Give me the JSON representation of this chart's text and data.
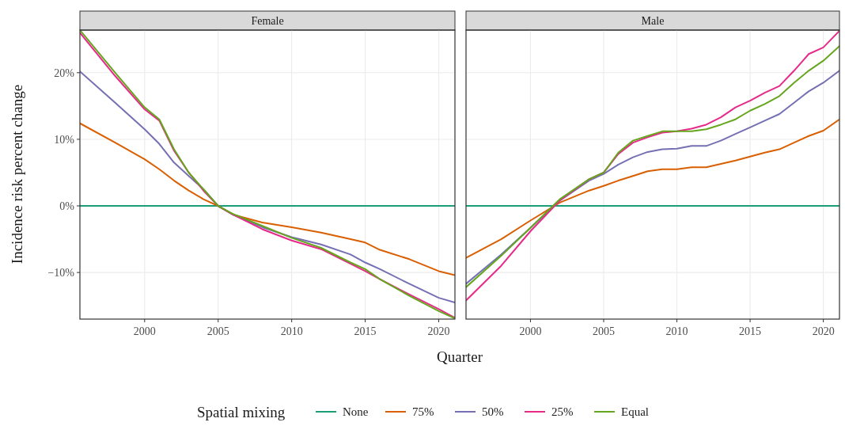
{
  "chart_data": [
    {
      "type": "line",
      "title": "Female",
      "xlabel": "Quarter",
      "ylabel": "Incidence risk percent change",
      "legend_title": "Spatial mixing",
      "legend": "bottom",
      "grid": true,
      "xlim": [
        1995.6,
        2021.1
      ],
      "ylim": [
        -17,
        26.4
      ],
      "xticks": [
        2000,
        2005,
        2010,
        2015,
        2020
      ],
      "yticks": [
        {
          "value": -10,
          "label": "−10%"
        },
        {
          "value": 0,
          "label": "0%"
        },
        {
          "value": 10,
          "label": "10%"
        },
        {
          "value": 20,
          "label": "20%"
        }
      ],
      "series": [
        {
          "name": "None",
          "color": "#1b9e77",
          "x": [
            1995.6,
            2021.1
          ],
          "values": [
            0,
            0
          ]
        },
        {
          "name": "75%",
          "color": "#d95f02",
          "x": [
            1995.6,
            1998,
            2000,
            2001,
            2002,
            2003,
            2004,
            2005,
            2006,
            2008,
            2010,
            2012,
            2014,
            2015,
            2016,
            2018,
            2020,
            2021.1
          ],
          "values": [
            12.4,
            9.5,
            7,
            5.5,
            3.8,
            2.3,
            1,
            0,
            -1.3,
            -2.5,
            -3.2,
            -4,
            -5,
            -5.5,
            -6.6,
            -8,
            -9.8,
            -10.4
          ]
        },
        {
          "name": "50%",
          "color": "#7570b3",
          "x": [
            1995.6,
            1998,
            2000,
            2001,
            2002,
            2003,
            2004,
            2005,
            2006,
            2008,
            2010,
            2012,
            2014,
            2015,
            2016,
            2018,
            2020,
            2021.1
          ],
          "values": [
            20.2,
            15.5,
            11.5,
            9.3,
            6.5,
            4.5,
            2.5,
            0,
            -1.3,
            -3.2,
            -4.7,
            -5.8,
            -7.3,
            -8.5,
            -9.5,
            -11.7,
            -13.8,
            -14.5
          ]
        },
        {
          "name": "25%",
          "color": "#e7298a",
          "x": [
            1995.6,
            1998,
            2000,
            2001,
            2002,
            2003,
            2004,
            2005,
            2006,
            2008,
            2010,
            2012,
            2014,
            2015,
            2016,
            2018,
            2020,
            2021.1
          ],
          "values": [
            26,
            19.5,
            14.5,
            12.8,
            8.3,
            5,
            2.3,
            0,
            -1.3,
            -3.5,
            -5.2,
            -6.5,
            -8.7,
            -9.8,
            -11,
            -13.3,
            -15.5,
            -16.8
          ]
        },
        {
          "name": "Equal",
          "color": "#66a61e",
          "x": [
            1995.6,
            1998,
            2000,
            2001,
            2002,
            2003,
            2004,
            2005,
            2006,
            2008,
            2010,
            2012,
            2014,
            2015,
            2016,
            2018,
            2020,
            2021.1
          ],
          "values": [
            26.4,
            20,
            14.8,
            13,
            8.5,
            5,
            2.5,
            0,
            -1.2,
            -3,
            -4.8,
            -6.3,
            -8.5,
            -9.5,
            -11,
            -13.5,
            -15.8,
            -16.9
          ]
        }
      ]
    },
    {
      "type": "line",
      "title": "Male",
      "grid": true,
      "tick_labels": "x",
      "xlim": [
        1995.6,
        2021.1
      ],
      "ylim": [
        -17,
        26.4
      ],
      "xticks": [
        2000,
        2005,
        2010,
        2015,
        2020
      ],
      "yticks": [
        {
          "value": -10,
          "label": null
        },
        {
          "value": 0,
          "label": null
        },
        {
          "value": 10,
          "label": null
        },
        {
          "value": 20,
          "label": null
        }
      ],
      "series": [
        {
          "color": "#1b9e77",
          "x": [
            1995.6,
            2021.1
          ],
          "values": [
            0,
            0
          ]
        },
        {
          "color": "#d95f02",
          "x": [
            1995.6,
            1998,
            2000,
            2002,
            2004,
            2005,
            2006,
            2007,
            2008,
            2009,
            2010,
            2011,
            2012,
            2013,
            2014,
            2015,
            2016,
            2017,
            2018,
            2019,
            2020,
            2021.1
          ],
          "values": [
            -7.8,
            -5,
            -2.2,
            0.5,
            2.3,
            3,
            3.8,
            4.5,
            5.2,
            5.5,
            5.5,
            5.8,
            5.8,
            6.3,
            6.8,
            7.4,
            8,
            8.5,
            9.5,
            10.5,
            11.3,
            13
          ]
        },
        {
          "color": "#7570b3",
          "x": [
            1995.6,
            1998,
            2000,
            2002,
            2004,
            2005,
            2006,
            2007,
            2008,
            2009,
            2010,
            2011,
            2012,
            2013,
            2014,
            2015,
            2016,
            2017,
            2018,
            2019,
            2020,
            2021.1
          ],
          "values": [
            -11.7,
            -7.3,
            -3.3,
            0.8,
            3.8,
            4.8,
            6.2,
            7.3,
            8.1,
            8.5,
            8.6,
            9,
            9,
            9.8,
            10.8,
            11.8,
            12.8,
            13.8,
            15.5,
            17.2,
            18.5,
            20.3
          ]
        },
        {
          "color": "#e7298a",
          "x": [
            1995.6,
            1998,
            2000,
            2002,
            2004,
            2005,
            2006,
            2007,
            2008,
            2009,
            2010,
            2011,
            2012,
            2013,
            2014,
            2015,
            2016,
            2017,
            2018,
            2019,
            2020,
            2021.1
          ],
          "values": [
            -14.2,
            -9,
            -3.8,
            0.8,
            4,
            5,
            7.8,
            9.5,
            10.3,
            11,
            11.2,
            11.6,
            12.2,
            13.3,
            14.8,
            15.8,
            17,
            18,
            20.3,
            22.8,
            23.8,
            26.3
          ]
        },
        {
          "color": "#66a61e",
          "x": [
            1995.6,
            1998,
            2000,
            2002,
            2004,
            2005,
            2006,
            2007,
            2008,
            2009,
            2010,
            2011,
            2012,
            2013,
            2014,
            2015,
            2016,
            2017,
            2018,
            2019,
            2020,
            2021.1
          ],
          "values": [
            -12.2,
            -7.5,
            -3.3,
            1,
            4,
            5,
            8,
            9.8,
            10.5,
            11.2,
            11.2,
            11.2,
            11.5,
            12.2,
            13,
            14.3,
            15.3,
            16.5,
            18.5,
            20.3,
            21.8,
            24
          ]
        }
      ]
    }
  ]
}
